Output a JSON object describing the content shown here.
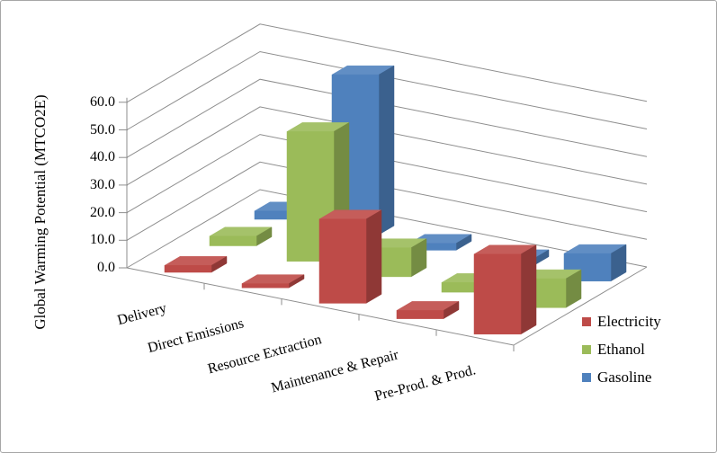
{
  "figure": {
    "background": "#ffffff",
    "border_color": "#a6a6a6",
    "text_color": "#000000",
    "gridline_color": "#8e8e8e"
  },
  "chart_data": {
    "type": "bar",
    "projection": "3d",
    "title": "",
    "xlabel": "",
    "ylabel": "Global Warming Potential (MTCO2E)",
    "categories": [
      "Delivery",
      "Direct Emissions",
      "Resource Extraction",
      "Maintenance & Repair",
      "Pre-Prod. & Prod."
    ],
    "series": [
      {
        "name": "Electricity",
        "color": "#be4b48",
        "values": [
          2.5,
          1.5,
          30.5,
          3.0,
          29.0
        ]
      },
      {
        "name": "Ethanol",
        "color": "#9bbb59",
        "values": [
          3.5,
          47.0,
          10.5,
          3.5,
          10.5
        ]
      },
      {
        "name": "Gasoline",
        "color": "#4f81bd",
        "values": [
          3.0,
          58.0,
          2.5,
          2.5,
          10.0
        ]
      }
    ],
    "ylim": [
      0,
      60
    ],
    "ytick_step": 10,
    "ytick_labels": [
      "0.0",
      "10.0",
      "20.0",
      "30.0",
      "40.0",
      "50.0",
      "60.0"
    ],
    "grid": true,
    "legend_position": "right",
    "legend_entries": [
      "Electricity",
      "Ethanol",
      "Gasoline"
    ]
  }
}
